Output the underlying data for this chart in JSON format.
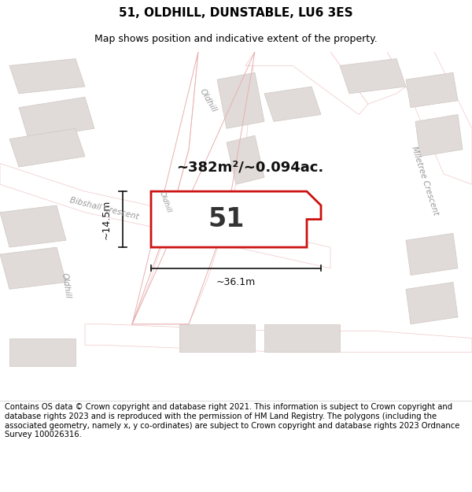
{
  "title": "51, OLDHILL, DUNSTABLE, LU6 3ES",
  "subtitle": "Map shows position and indicative extent of the property.",
  "footer": "Contains OS data © Crown copyright and database right 2021. This information is subject to Crown copyright and database rights 2023 and is reproduced with the permission of HM Land Registry. The polygons (including the associated geometry, namely x, y co-ordinates) are subject to Crown copyright and database rights 2023 Ordnance Survey 100026316.",
  "area_label": "~382m²/~0.094ac.",
  "number_label": "51",
  "dim1_label": "~14.5m",
  "dim2_label": "~36.1m",
  "map_background": "#f7f4f0",
  "road_color": "#ffffff",
  "road_edge_color": "#f0c8c8",
  "building_color": "#e0dbd8",
  "building_edge_color": "#d0c8c4",
  "highlight_poly_color": "#cc1111",
  "street_label_color": "#999999",
  "title_fontsize": 11,
  "subtitle_fontsize": 9,
  "footer_fontsize": 7.2,
  "area_fontsize": 13,
  "number_fontsize": 24,
  "dim_fontsize": 9
}
